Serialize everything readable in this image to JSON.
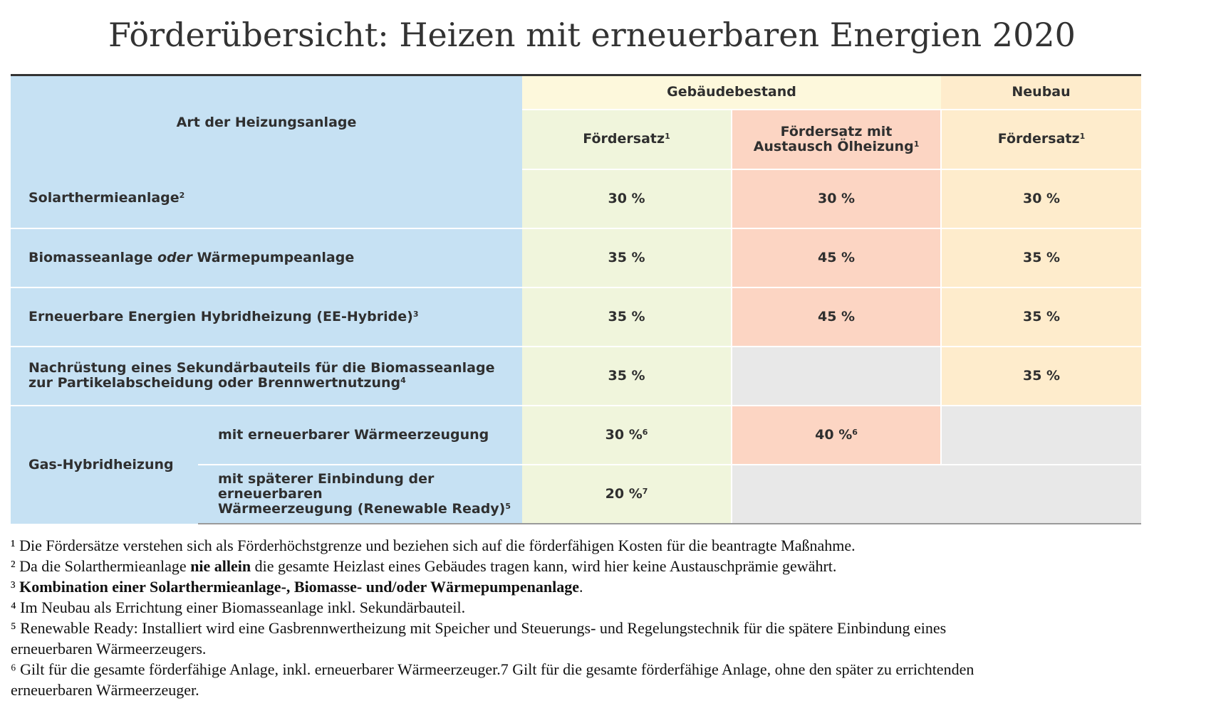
{
  "title": "Förderübersicht: Heizen mit erneuerbaren Energien 2020",
  "header": {
    "art": "Art der Heizungsanlage",
    "bestand": "Gebäudebestand",
    "neubau": "Neubau",
    "foerdersatz_label": "Fördersatz",
    "austausch_line1": "Fördersatz mit",
    "austausch_line2": "Austausch Ölheizung",
    "sup1": "1"
  },
  "rows": [
    {
      "label": "Solarthermieanlage",
      "sup": "2",
      "bestand": "30 %",
      "austausch": "30 %",
      "neubau": "30 %"
    },
    {
      "label_a": "Biomasseanlage ",
      "label_italic": "oder",
      "label_b": " Wärmepumpeanlage",
      "bestand": "35 %",
      "austausch": "45 %",
      "neubau": "35 %"
    },
    {
      "label": "Erneuerbare Energien Hybridheizung (EE-Hybride)",
      "sup": "3",
      "bestand": "35 %",
      "austausch": "45 %",
      "neubau": "35 %"
    },
    {
      "label_line1": "Nachrüstung eines Sekundärbauteils für die Biomasseanlage",
      "label_line2": "zur Partikelabscheidung oder Brennwertnutzung",
      "sup": "4",
      "bestand": "35 %",
      "neubau": "35 %"
    }
  ],
  "gas": {
    "label": "Gas-Hybridheizung",
    "sub1": {
      "label": "mit erneuerbarer Wärmeerzeugung",
      "bestand": "30 %",
      "bestand_sup": "6",
      "austausch": "40 %",
      "austausch_sup": "6"
    },
    "sub2": {
      "label_line1": "mit späterer Einbindung der erneuerbaren",
      "label_line2": "Wärmeerzeugung (Renewable Ready)",
      "sup": "5",
      "bestand": "20 %",
      "bestand_sup": "7"
    }
  },
  "footnotes": {
    "n1": {
      "mark": "¹",
      "text": " Die Fördersätze verstehen sich als Förderhöchstgrenze und beziehen sich auf die förderfähigen Kosten für die beantragte Maßnahme."
    },
    "n2": {
      "mark": "²",
      "pre": " Da die Solarthermieanlage ",
      "bold": "nie allein",
      "post": " die gesamte Heizlast eines Gebäudes tragen kann, wird hier keine Austauschprämie gewährt."
    },
    "n3": {
      "mark": "³",
      "bold": " Kombination einer Solarthermieanlage-, Biomasse- und/oder Wärmepumpenanlage",
      "post": "."
    },
    "n4": {
      "mark": "⁴",
      "text": " Im Neubau als Errichtung einer Biomasseanlage inkl. Sekundärbauteil."
    },
    "n5": {
      "mark": "⁵",
      "line1": " Renewable Ready: Installiert wird eine Gasbrennwertheizung mit Speicher und Steuerungs- und Regelungstechnik für die spätere Einbindung eines",
      "line2": "erneuerbaren Wärmeerzeugers."
    },
    "n6": {
      "mark": "⁶",
      "line1": " Gilt für die gesamte förderfähige Anlage, inkl. erneuerbarer Wärmeerzeuger.7 Gilt für die gesamte förderfähige Anlage, ohne den später zu errichtenden",
      "line2": "erneuerbaren Wärmeerzeuger."
    }
  }
}
